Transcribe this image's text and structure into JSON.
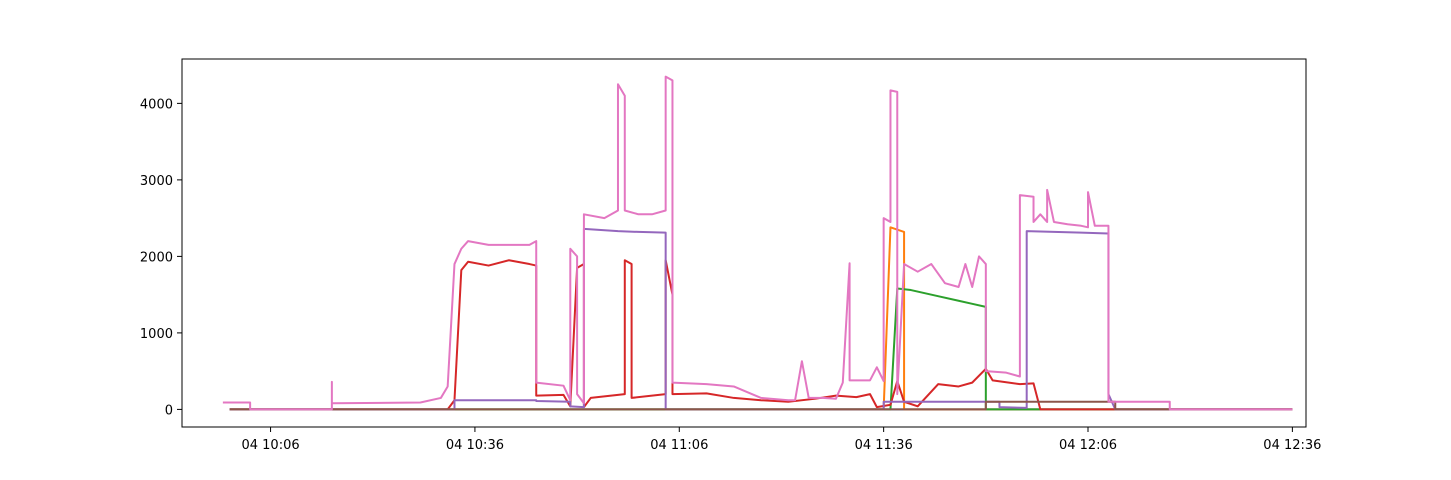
{
  "chart_data": {
    "type": "line",
    "title": "",
    "xlabel": "",
    "ylabel": "",
    "x_axis": {
      "type": "time",
      "range": [
        "04 09:53",
        "04 12:38"
      ],
      "ticks": [
        {
          "t": "04 10:06",
          "label": "04 10:06"
        },
        {
          "t": "04 10:36",
          "label": "04 10:36"
        },
        {
          "t": "04 11:06",
          "label": "04 11:06"
        },
        {
          "t": "04 11:36",
          "label": "04 11:36"
        },
        {
          "t": "04 12:06",
          "label": "04 12:06"
        },
        {
          "t": "04 12:36",
          "label": "04 12:36"
        }
      ]
    },
    "y_axis": {
      "range": [
        -230,
        4580
      ],
      "ticks": [
        {
          "v": 0,
          "label": "0"
        },
        {
          "v": 1000,
          "label": "1000"
        },
        {
          "v": 2000,
          "label": "2000"
        },
        {
          "v": 3000,
          "label": "3000"
        },
        {
          "v": 4000,
          "label": "4000"
        }
      ]
    },
    "grid": false,
    "legend": "none",
    "series": [
      {
        "color": "#1f77b4",
        "points": [
          [
            "04 10:00",
            0
          ],
          [
            "04 12:36",
            0
          ]
        ]
      },
      {
        "color": "#ff7f0e",
        "points": [
          [
            "04 10:00",
            0
          ],
          [
            "04 11:36",
            0
          ],
          [
            "04 11:37",
            2380
          ],
          [
            "04 11:39",
            2320
          ],
          [
            "04 11:39",
            0
          ],
          [
            "04 12:36",
            0
          ]
        ]
      },
      {
        "color": "#2ca02c",
        "points": [
          [
            "04 10:00",
            0
          ],
          [
            "04 11:37",
            0
          ],
          [
            "04 11:38",
            1580
          ],
          [
            "04 11:40",
            1560
          ],
          [
            "04 11:44",
            1480
          ],
          [
            "04 11:47",
            1420
          ],
          [
            "04 11:49",
            1380
          ],
          [
            "04 11:51",
            1340
          ],
          [
            "04 11:51",
            0
          ],
          [
            "04 12:36",
            0
          ]
        ]
      },
      {
        "color": "#d62728",
        "points": [
          [
            "04 10:00",
            0
          ],
          [
            "04 10:32",
            0
          ],
          [
            "04 10:33",
            120
          ],
          [
            "04 10:34",
            1820
          ],
          [
            "04 10:35",
            1930
          ],
          [
            "04 10:38",
            1880
          ],
          [
            "04 10:41",
            1950
          ],
          [
            "04 10:44",
            1900
          ],
          [
            "04 10:45",
            1880
          ],
          [
            "04 10:45",
            180
          ],
          [
            "04 10:49",
            190
          ],
          [
            "04 10:50",
            40
          ],
          [
            "04 10:51",
            1850
          ],
          [
            "04 10:52",
            1900
          ],
          [
            "04 10:52",
            30
          ],
          [
            "04 10:53",
            150
          ],
          [
            "04 10:58",
            200
          ],
          [
            "04 10:58",
            1950
          ],
          [
            "04 10:59",
            1900
          ],
          [
            "04 10:59",
            150
          ],
          [
            "04 11:04",
            200
          ],
          [
            "04 11:04",
            1950
          ],
          [
            "04 11:05",
            1500
          ],
          [
            "04 11:05",
            200
          ],
          [
            "04 11:10",
            210
          ],
          [
            "04 11:14",
            150
          ],
          [
            "04 11:18",
            120
          ],
          [
            "04 11:22",
            100
          ],
          [
            "04 11:26",
            140
          ],
          [
            "04 11:29",
            180
          ],
          [
            "04 11:32",
            160
          ],
          [
            "04 11:34",
            200
          ],
          [
            "04 11:35",
            30
          ],
          [
            "04 11:37",
            60
          ],
          [
            "04 11:38",
            370
          ],
          [
            "04 11:39",
            100
          ],
          [
            "04 11:41",
            40
          ],
          [
            "04 11:44",
            330
          ],
          [
            "04 11:47",
            300
          ],
          [
            "04 11:49",
            350
          ],
          [
            "04 11:51",
            530
          ],
          [
            "04 11:52",
            380
          ],
          [
            "04 11:56",
            330
          ],
          [
            "04 11:58",
            340
          ],
          [
            "04 11:59",
            0
          ],
          [
            "04 12:36",
            0
          ]
        ]
      },
      {
        "color": "#9467bd",
        "points": [
          [
            "04 10:00",
            0
          ],
          [
            "04 10:33",
            0
          ],
          [
            "04 10:33",
            120
          ],
          [
            "04 10:45",
            120
          ],
          [
            "04 10:45",
            110
          ],
          [
            "04 10:50",
            100
          ],
          [
            "04 10:50",
            40
          ],
          [
            "04 10:52",
            30
          ],
          [
            "04 10:52",
            2360
          ],
          [
            "04 10:57",
            2330
          ],
          [
            "04 11:00",
            2320
          ],
          [
            "04 11:04",
            2310
          ],
          [
            "04 11:04",
            0
          ],
          [
            "04 11:36",
            0
          ],
          [
            "04 11:36",
            100
          ],
          [
            "04 11:53",
            100
          ],
          [
            "04 11:53",
            30
          ],
          [
            "04 11:57",
            20
          ],
          [
            "04 11:57",
            2330
          ],
          [
            "04 12:01",
            2320
          ],
          [
            "04 12:05",
            2310
          ],
          [
            "04 12:09",
            2300
          ],
          [
            "04 12:09",
            200
          ],
          [
            "04 12:10",
            0
          ],
          [
            "04 12:36",
            0
          ]
        ]
      },
      {
        "color": "#8c564b",
        "points": [
          [
            "04 10:00",
            0
          ],
          [
            "04 11:51",
            0
          ],
          [
            "04 11:51",
            100
          ],
          [
            "04 12:10",
            100
          ],
          [
            "04 12:10",
            0
          ],
          [
            "04 12:36",
            0
          ]
        ]
      },
      {
        "color": "#e377c2",
        "points": [
          [
            "04 09:59",
            90
          ],
          [
            "04 10:03",
            90
          ],
          [
            "04 10:03",
            0
          ],
          [
            "04 10:15",
            0
          ],
          [
            "04 10:15",
            360
          ],
          [
            "04 10:15",
            80
          ],
          [
            "04 10:28",
            90
          ],
          [
            "04 10:31",
            150
          ],
          [
            "04 10:32",
            300
          ],
          [
            "04 10:33",
            1900
          ],
          [
            "04 10:34",
            2100
          ],
          [
            "04 10:35",
            2200
          ],
          [
            "04 10:38",
            2150
          ],
          [
            "04 10:41",
            2150
          ],
          [
            "04 10:44",
            2150
          ],
          [
            "04 10:45",
            2200
          ],
          [
            "04 10:45",
            350
          ],
          [
            "04 10:49",
            310
          ],
          [
            "04 10:50",
            120
          ],
          [
            "04 10:50",
            2100
          ],
          [
            "04 10:51",
            2000
          ],
          [
            "04 10:51",
            200
          ],
          [
            "04 10:52",
            80
          ],
          [
            "04 10:52",
            2550
          ],
          [
            "04 10:55",
            2500
          ],
          [
            "04 10:57",
            2600
          ],
          [
            "04 10:57",
            4250
          ],
          [
            "04 10:58",
            4100
          ],
          [
            "04 10:58",
            2600
          ],
          [
            "04 11:00",
            2550
          ],
          [
            "04 11:02",
            2550
          ],
          [
            "04 11:04",
            2600
          ],
          [
            "04 11:04",
            4350
          ],
          [
            "04 11:05",
            4300
          ],
          [
            "04 11:05",
            350
          ],
          [
            "04 11:10",
            330
          ],
          [
            "04 11:14",
            300
          ],
          [
            "04 11:18",
            150
          ],
          [
            "04 11:22",
            120
          ],
          [
            "04 11:23",
            120
          ],
          [
            "04 11:24",
            630
          ],
          [
            "04 11:25",
            150
          ],
          [
            "04 11:27",
            150
          ],
          [
            "04 11:29",
            140
          ],
          [
            "04 11:30",
            350
          ],
          [
            "04 11:31",
            1910
          ],
          [
            "04 11:31",
            380
          ],
          [
            "04 11:34",
            380
          ],
          [
            "04 11:35",
            550
          ],
          [
            "04 11:36",
            370
          ],
          [
            "04 11:36",
            2500
          ],
          [
            "04 11:37",
            2450
          ],
          [
            "04 11:37",
            4170
          ],
          [
            "04 11:38",
            4150
          ],
          [
            "04 11:38",
            200
          ],
          [
            "04 11:39",
            1900
          ],
          [
            "04 11:41",
            1800
          ],
          [
            "04 11:43",
            1900
          ],
          [
            "04 11:45",
            1650
          ],
          [
            "04 11:47",
            1600
          ],
          [
            "04 11:48",
            1900
          ],
          [
            "04 11:49",
            1600
          ],
          [
            "04 11:50",
            2000
          ],
          [
            "04 11:51",
            1900
          ],
          [
            "04 11:51",
            500
          ],
          [
            "04 11:54",
            480
          ],
          [
            "04 11:56",
            430
          ],
          [
            "04 11:56",
            2800
          ],
          [
            "04 11:58",
            2780
          ],
          [
            "04 11:58",
            2450
          ],
          [
            "04 11:59",
            2550
          ],
          [
            "04 12:00",
            2450
          ],
          [
            "04 12:00",
            2870
          ],
          [
            "04 12:01",
            2450
          ],
          [
            "04 12:03",
            2420
          ],
          [
            "04 12:05",
            2400
          ],
          [
            "04 12:06",
            2380
          ],
          [
            "04 12:06",
            2840
          ],
          [
            "04 12:07",
            2400
          ],
          [
            "04 12:09",
            2400
          ],
          [
            "04 12:09",
            100
          ],
          [
            "04 12:18",
            100
          ],
          [
            "04 12:18",
            0
          ],
          [
            "04 12:36",
            0
          ]
        ]
      }
    ]
  }
}
